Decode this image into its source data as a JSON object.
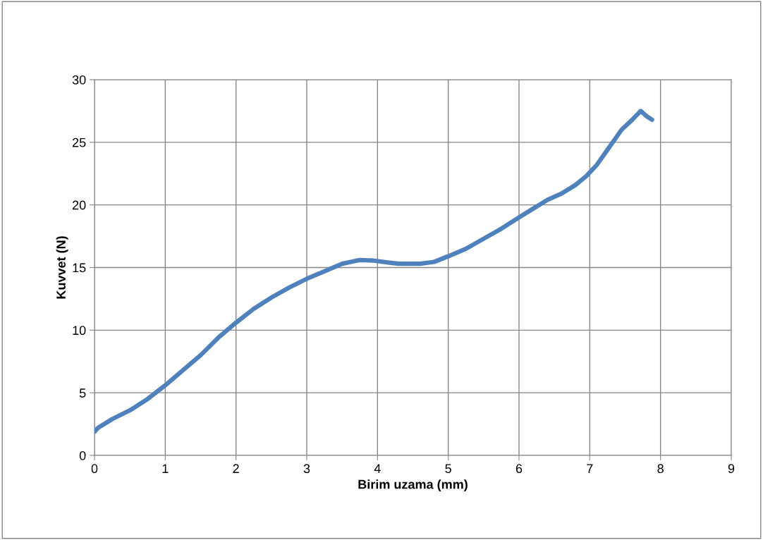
{
  "chart_data": {
    "type": "line",
    "xlabel": "Birim uzama (mm)",
    "ylabel": "Kuvvet (N)",
    "series": [
      {
        "color": "#4f81bd",
        "x": [
          0,
          0.05,
          0.25,
          0.5,
          0.75,
          1,
          1.25,
          1.5,
          1.75,
          2,
          2.25,
          2.5,
          2.75,
          3,
          3.25,
          3.5,
          3.75,
          3.95,
          4.15,
          4.3,
          4.6,
          4.8,
          5,
          5.25,
          5.5,
          5.75,
          6,
          6.2,
          6.4,
          6.6,
          6.8,
          6.95,
          7.1,
          7.2,
          7.35,
          7.45,
          7.6,
          7.72,
          7.8,
          7.88
        ],
        "values": [
          1.9,
          2.2,
          2.9,
          3.6,
          4.5,
          5.6,
          6.8,
          8.0,
          9.4,
          10.6,
          11.7,
          12.6,
          13.4,
          14.1,
          14.7,
          15.3,
          15.6,
          15.55,
          15.4,
          15.3,
          15.3,
          15.45,
          15.9,
          16.5,
          17.3,
          18.1,
          19.0,
          19.7,
          20.4,
          20.9,
          21.6,
          22.3,
          23.2,
          24.0,
          25.2,
          26.0,
          26.8,
          27.5,
          27.1,
          26.8
        ]
      }
    ],
    "xlim": [
      0,
      9
    ],
    "xticks": [
      0,
      1,
      2,
      3,
      4,
      5,
      6,
      7,
      8,
      9
    ],
    "ylim": [
      0,
      30
    ],
    "yticks": [
      0,
      5,
      10,
      15,
      20,
      25,
      30
    ],
    "grid": true,
    "marker": "none",
    "line_style": "solid",
    "legend": false
  }
}
